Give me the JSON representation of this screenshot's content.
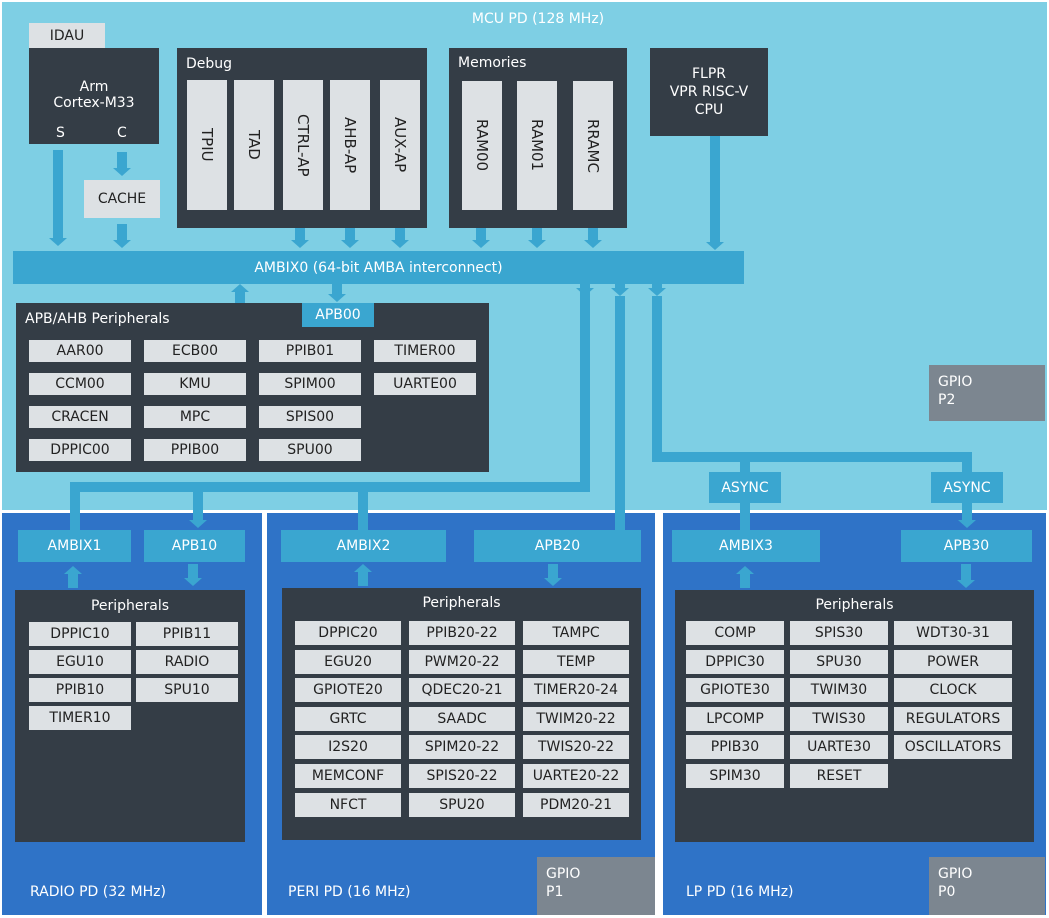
{
  "mcu": {
    "title": "MCU PD (128 MHz)",
    "idau": "IDAU",
    "cpu": {
      "line1": "Arm",
      "line2": "Cortex-M33",
      "s": "S",
      "c": "C"
    },
    "cache": "CACHE",
    "debug": {
      "title": "Debug",
      "items": [
        "TPIU",
        "TAD",
        "CTRL-AP",
        "AHB-AP",
        "AUX-AP"
      ]
    },
    "memories": {
      "title": "Memories",
      "items": [
        "RAM00",
        "RAM01",
        "RRAMC"
      ]
    },
    "flpr": {
      "line1": "FLPR",
      "line2": "VPR RISC-V",
      "line3": "CPU"
    },
    "bus": "AMBIX0 (64-bit AMBA interconnect)",
    "apb": {
      "title": "APB/AHB Peripherals",
      "tag": "APB00",
      "items": [
        "AAR00",
        "ECB00",
        "PPIB01",
        "TIMER00",
        "CCM00",
        "KMU",
        "SPIM00",
        "UARTE00",
        "CRACEN",
        "MPC",
        "SPIS00",
        "",
        "DPPIC00",
        "PPIB00",
        "SPU00",
        ""
      ]
    },
    "gpio": {
      "line1": "GPIO",
      "line2": "P2"
    },
    "async": [
      "ASYNC",
      "ASYNC"
    ]
  },
  "radio": {
    "title": "RADIO PD (32 MHz)",
    "ambix": "AMBIX1",
    "apb": "APB10",
    "periph_title": "Peripherals",
    "items": [
      "DPPIC10",
      "PPIB11",
      "EGU10",
      "RADIO",
      "PPIB10",
      "SPU10",
      "TIMER10",
      ""
    ]
  },
  "peri": {
    "title": "PERI PD (16 MHz)",
    "ambix": "AMBIX2",
    "apb": "APB20",
    "periph_title": "Peripherals",
    "items": [
      "DPPIC20",
      "PPIB20-22",
      "TAMPC",
      "EGU20",
      "PWM20-22",
      "TEMP",
      "GPIOTE20",
      "QDEC20-21",
      "TIMER20-24",
      "GRTC",
      "SAADC",
      "TWIM20-22",
      "I2S20",
      "SPIM20-22",
      "TWIS20-22",
      "MEMCONF",
      "SPIS20-22",
      "UARTE20-22",
      "NFCT",
      "SPU20",
      "PDM20-21"
    ],
    "gpio": {
      "line1": "GPIO",
      "line2": "P1"
    }
  },
  "lp": {
    "title": "LP PD (16 MHz)",
    "ambix": "AMBIX3",
    "apb": "APB30",
    "periph_title": "Peripherals",
    "items": [
      "COMP",
      "SPIS30",
      "WDT30-31",
      "DPPIC30",
      "SPU30",
      "POWER",
      "GPIOTE30",
      "TWIM30",
      "CLOCK",
      "LPCOMP",
      "TWIS30",
      "REGULATORS",
      "PPIB30",
      "UARTE30",
      "OSCILLATORS",
      "SPIM30",
      "RESET",
      ""
    ],
    "gpio": {
      "line1": "GPIO",
      "line2": "P0"
    }
  },
  "colors": {
    "mcu_bg": "#7ecfe4",
    "panel": "#343d46",
    "block": "#dde1e4",
    "bus": "#3aa6d0",
    "domain": "#2f73c7",
    "gpio": "#7c8690"
  }
}
